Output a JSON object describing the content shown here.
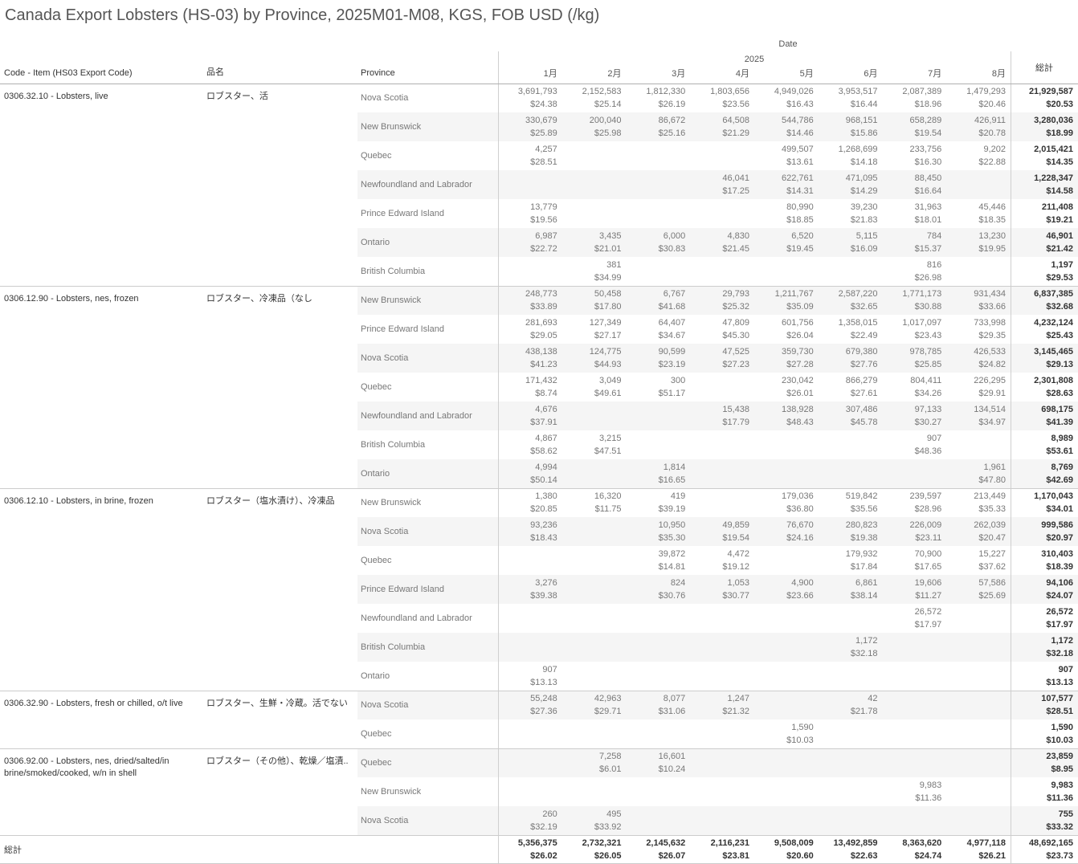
{
  "colors": {
    "title": "#555555",
    "stripe": "#f5f5f5",
    "grid_line": "#cccccc",
    "text_dark": "#333333",
    "text_gray": "#787878"
  },
  "chart_data": {
    "type": "table",
    "title": "Canada Export Lobsters (HS-03) by Province, 2025M01-M08, KGS, FOB USD (/kg)",
    "header": {
      "date_label": "Date",
      "year_label": "2025",
      "months": [
        "1月",
        "2月",
        "3月",
        "4月",
        "5月",
        "6月",
        "7月",
        "8月"
      ],
      "total_label": "総計",
      "code_col": "Code - Item (HS03 Export Code)",
      "name_col": "品名",
      "province_col": "Province"
    },
    "groups": [
      {
        "code": "0306.32.10 - Lobsters, live",
        "name_jp": "ロブスター、活",
        "rows": [
          {
            "province": "Nova Scotia",
            "qty": [
              "3,691,793",
              "2,152,583",
              "1,812,330",
              "1,803,656",
              "4,949,026",
              "3,953,517",
              "2,087,389",
              "1,479,293"
            ],
            "price": [
              "$24.38",
              "$25.14",
              "$26.19",
              "$23.56",
              "$16.43",
              "$16.44",
              "$18.96",
              "$20.46"
            ],
            "total_qty": "21,929,587",
            "total_price": "$20.53"
          },
          {
            "province": "New Brunswick",
            "qty": [
              "330,679",
              "200,040",
              "86,672",
              "64,508",
              "544,786",
              "968,151",
              "658,289",
              "426,911"
            ],
            "price": [
              "$25.89",
              "$25.98",
              "$25.16",
              "$21.29",
              "$14.46",
              "$15.86",
              "$19.54",
              "$20.78"
            ],
            "total_qty": "3,280,036",
            "total_price": "$18.99"
          },
          {
            "province": "Quebec",
            "qty": [
              "4,257",
              "",
              "",
              "",
              "499,507",
              "1,268,699",
              "233,756",
              "9,202"
            ],
            "price": [
              "$28.51",
              "",
              "",
              "",
              "$13.61",
              "$14.18",
              "$16.30",
              "$22.88"
            ],
            "total_qty": "2,015,421",
            "total_price": "$14.35"
          },
          {
            "province": "Newfoundland and Labrador",
            "qty": [
              "",
              "",
              "",
              "46,041",
              "622,761",
              "471,095",
              "88,450",
              ""
            ],
            "price": [
              "",
              "",
              "",
              "$17.25",
              "$14.31",
              "$14.29",
              "$16.64",
              ""
            ],
            "total_qty": "1,228,347",
            "total_price": "$14.58"
          },
          {
            "province": "Prince Edward Island",
            "qty": [
              "13,779",
              "",
              "",
              "",
              "80,990",
              "39,230",
              "31,963",
              "45,446"
            ],
            "price": [
              "$19.56",
              "",
              "",
              "",
              "$18.85",
              "$21.83",
              "$18.01",
              "$18.35"
            ],
            "total_qty": "211,408",
            "total_price": "$19.21"
          },
          {
            "province": "Ontario",
            "qty": [
              "6,987",
              "3,435",
              "6,000",
              "4,830",
              "6,520",
              "5,115",
              "784",
              "13,230"
            ],
            "price": [
              "$22.72",
              "$21.01",
              "$30.83",
              "$21.45",
              "$19.45",
              "$16.09",
              "$15.37",
              "$19.95"
            ],
            "total_qty": "46,901",
            "total_price": "$21.42"
          },
          {
            "province": "British Columbia",
            "qty": [
              "",
              "381",
              "",
              "",
              "",
              "",
              "816",
              ""
            ],
            "price": [
              "",
              "$34.99",
              "",
              "",
              "",
              "",
              "$26.98",
              ""
            ],
            "total_qty": "1,197",
            "total_price": "$29.53"
          }
        ]
      },
      {
        "code": "0306.12.90 - Lobsters, nes, frozen",
        "name_jp": "ロブスター、冷凍品（なし",
        "rows": [
          {
            "province": "New Brunswick",
            "qty": [
              "248,773",
              "50,458",
              "6,767",
              "29,793",
              "1,211,767",
              "2,587,220",
              "1,771,173",
              "931,434"
            ],
            "price": [
              "$33.89",
              "$17.80",
              "$41.68",
              "$25.32",
              "$35.09",
              "$32.65",
              "$30.88",
              "$33.66"
            ],
            "total_qty": "6,837,385",
            "total_price": "$32.68"
          },
          {
            "province": "Prince Edward Island",
            "qty": [
              "281,693",
              "127,349",
              "64,407",
              "47,809",
              "601,756",
              "1,358,015",
              "1,017,097",
              "733,998"
            ],
            "price": [
              "$29.05",
              "$27.17",
              "$34.67",
              "$45.30",
              "$26.04",
              "$22.49",
              "$23.43",
              "$29.35"
            ],
            "total_qty": "4,232,124",
            "total_price": "$25.43"
          },
          {
            "province": "Nova Scotia",
            "qty": [
              "438,138",
              "124,775",
              "90,599",
              "47,525",
              "359,730",
              "679,380",
              "978,785",
              "426,533"
            ],
            "price": [
              "$41.23",
              "$44.93",
              "$23.19",
              "$27.23",
              "$27.28",
              "$27.76",
              "$25.85",
              "$24.82"
            ],
            "total_qty": "3,145,465",
            "total_price": "$29.13"
          },
          {
            "province": "Quebec",
            "qty": [
              "171,432",
              "3,049",
              "300",
              "",
              "230,042",
              "866,279",
              "804,411",
              "226,295"
            ],
            "price": [
              "$8.74",
              "$49.61",
              "$51.17",
              "",
              "$26.01",
              "$27.61",
              "$34.26",
              "$29.91"
            ],
            "total_qty": "2,301,808",
            "total_price": "$28.63"
          },
          {
            "province": "Newfoundland and Labrador",
            "qty": [
              "4,676",
              "",
              "",
              "15,438",
              "138,928",
              "307,486",
              "97,133",
              "134,514"
            ],
            "price": [
              "$37.91",
              "",
              "",
              "$17.79",
              "$48.43",
              "$45.78",
              "$30.27",
              "$34.97"
            ],
            "total_qty": "698,175",
            "total_price": "$41.39"
          },
          {
            "province": "British Columbia",
            "qty": [
              "4,867",
              "3,215",
              "",
              "",
              "",
              "",
              "907",
              ""
            ],
            "price": [
              "$58.62",
              "$47.51",
              "",
              "",
              "",
              "",
              "$48.36",
              ""
            ],
            "total_qty": "8,989",
            "total_price": "$53.61"
          },
          {
            "province": "Ontario",
            "qty": [
              "4,994",
              "",
              "1,814",
              "",
              "",
              "",
              "",
              "1,961"
            ],
            "price": [
              "$50.14",
              "",
              "$16.65",
              "",
              "",
              "",
              "",
              "$47.80"
            ],
            "total_qty": "8,769",
            "total_price": "$42.69"
          }
        ]
      },
      {
        "code": "0306.12.10 - Lobsters, in brine, frozen",
        "name_jp": "ロブスター（塩水漬け）、冷凍品",
        "rows": [
          {
            "province": "New Brunswick",
            "qty": [
              "1,380",
              "16,320",
              "419",
              "",
              "179,036",
              "519,842",
              "239,597",
              "213,449"
            ],
            "price": [
              "$20.85",
              "$11.75",
              "$39.19",
              "",
              "$36.80",
              "$35.56",
              "$28.96",
              "$35.33"
            ],
            "total_qty": "1,170,043",
            "total_price": "$34.01"
          },
          {
            "province": "Nova Scotia",
            "qty": [
              "93,236",
              "",
              "10,950",
              "49,859",
              "76,670",
              "280,823",
              "226,009",
              "262,039"
            ],
            "price": [
              "$18.43",
              "",
              "$35.30",
              "$19.54",
              "$24.16",
              "$19.38",
              "$23.11",
              "$20.47"
            ],
            "total_qty": "999,586",
            "total_price": "$20.97"
          },
          {
            "province": "Quebec",
            "qty": [
              "",
              "",
              "39,872",
              "4,472",
              "",
              "179,932",
              "70,900",
              "15,227"
            ],
            "price": [
              "",
              "",
              "$14.81",
              "$19.12",
              "",
              "$17.84",
              "$17.65",
              "$37.62"
            ],
            "total_qty": "310,403",
            "total_price": "$18.39"
          },
          {
            "province": "Prince Edward Island",
            "qty": [
              "3,276",
              "",
              "824",
              "1,053",
              "4,900",
              "6,861",
              "19,606",
              "57,586"
            ],
            "price": [
              "$39.38",
              "",
              "$30.76",
              "$30.77",
              "$23.66",
              "$38.14",
              "$11.27",
              "$25.69"
            ],
            "total_qty": "94,106",
            "total_price": "$24.07"
          },
          {
            "province": "Newfoundland and Labrador",
            "qty": [
              "",
              "",
              "",
              "",
              "",
              "",
              "26,572",
              ""
            ],
            "price": [
              "",
              "",
              "",
              "",
              "",
              "",
              "$17.97",
              ""
            ],
            "total_qty": "26,572",
            "total_price": "$17.97"
          },
          {
            "province": "British Columbia",
            "qty": [
              "",
              "",
              "",
              "",
              "",
              "1,172",
              "",
              ""
            ],
            "price": [
              "",
              "",
              "",
              "",
              "",
              "$32.18",
              "",
              ""
            ],
            "total_qty": "1,172",
            "total_price": "$32.18"
          },
          {
            "province": "Ontario",
            "qty": [
              "907",
              "",
              "",
              "",
              "",
              "",
              "",
              ""
            ],
            "price": [
              "$13.13",
              "",
              "",
              "",
              "",
              "",
              "",
              ""
            ],
            "total_qty": "907",
            "total_price": "$13.13"
          }
        ]
      },
      {
        "code": "0306.32.90 - Lobsters, fresh or chilled, o/t live",
        "name_jp": "ロブスター、生鮮・冷蔵。活でない",
        "rows": [
          {
            "province": "Nova Scotia",
            "qty": [
              "55,248",
              "42,963",
              "8,077",
              "1,247",
              "",
              "42",
              "",
              ""
            ],
            "price": [
              "$27.36",
              "$29.71",
              "$31.06",
              "$21.32",
              "",
              "$21.78",
              "",
              ""
            ],
            "total_qty": "107,577",
            "total_price": "$28.51"
          },
          {
            "province": "Quebec",
            "qty": [
              "",
              "",
              "",
              "",
              "1,590",
              "",
              "",
              ""
            ],
            "price": [
              "",
              "",
              "",
              "",
              "$10.03",
              "",
              "",
              ""
            ],
            "total_qty": "1,590",
            "total_price": "$10.03"
          }
        ]
      },
      {
        "code": "0306.92.00 - Lobsters, nes, dried/salted/in brine/smoked/cooked, w/n in shell",
        "name_jp": "ロブスター（その他）、乾燥／塩漬..",
        "rows": [
          {
            "province": "Quebec",
            "qty": [
              "",
              "7,258",
              "16,601",
              "",
              "",
              "",
              "",
              ""
            ],
            "price": [
              "",
              "$6.01",
              "$10.24",
              "",
              "",
              "",
              "",
              ""
            ],
            "total_qty": "23,859",
            "total_price": "$8.95"
          },
          {
            "province": "New Brunswick",
            "qty": [
              "",
              "",
              "",
              "",
              "",
              "",
              "9,983",
              ""
            ],
            "price": [
              "",
              "",
              "",
              "",
              "",
              "",
              "$11.36",
              ""
            ],
            "total_qty": "9,983",
            "total_price": "$11.36"
          },
          {
            "province": "Nova Scotia",
            "qty": [
              "260",
              "495",
              "",
              "",
              "",
              "",
              "",
              ""
            ],
            "price": [
              "$32.19",
              "$33.92",
              "",
              "",
              "",
              "",
              "",
              ""
            ],
            "total_qty": "755",
            "total_price": "$33.32"
          }
        ]
      }
    ],
    "grand_total": {
      "label": "総計",
      "qty": [
        "5,356,375",
        "2,732,321",
        "2,145,632",
        "2,116,231",
        "9,508,009",
        "13,492,859",
        "8,363,620",
        "4,977,118"
      ],
      "price": [
        "$26.02",
        "$26.05",
        "$26.07",
        "$23.81",
        "$20.60",
        "$22.63",
        "$24.74",
        "$26.21"
      ],
      "total_qty": "48,692,165",
      "total_price": "$23.73"
    }
  }
}
